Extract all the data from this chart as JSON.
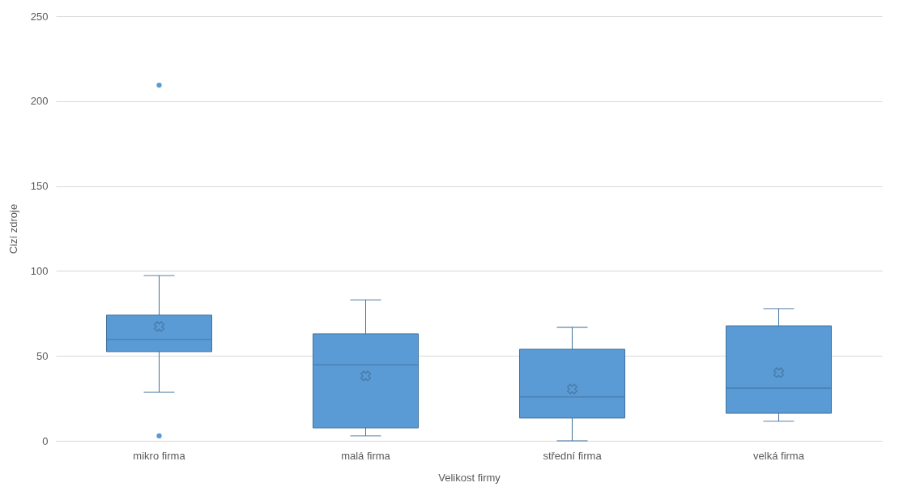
{
  "chart_data": {
    "type": "box",
    "xlabel": "Velikost firmy",
    "ylabel": "Cizí zdroje",
    "categories": [
      "mikro firma",
      "malá firma",
      "střední firma",
      "velká firma"
    ],
    "boxes": [
      {
        "low": 28.6,
        "q1": 52.5,
        "median": 59.6,
        "q3": 74,
        "high": 97.3,
        "mean": 67.3,
        "outliers": [
          209.4,
          2.9
        ]
      },
      {
        "low": 2.9,
        "q1": 7.6,
        "median": 44.8,
        "q3": 63,
        "high": 83,
        "mean": 38.2
      },
      {
        "low": 0,
        "q1": 13.4,
        "median": 25.8,
        "q3": 53.9,
        "high": 66.8,
        "mean": 30.5
      },
      {
        "low": 11.5,
        "q1": 16.2,
        "median": 31,
        "q3": 67.7,
        "high": 77.8,
        "mean": 40.1
      }
    ],
    "color": "#5b9bd5",
    "marker": "cross",
    "ylim": [
      0,
      250
    ],
    "yticks": [
      0,
      50,
      100,
      150,
      200,
      250
    ],
    "grid": "y"
  }
}
